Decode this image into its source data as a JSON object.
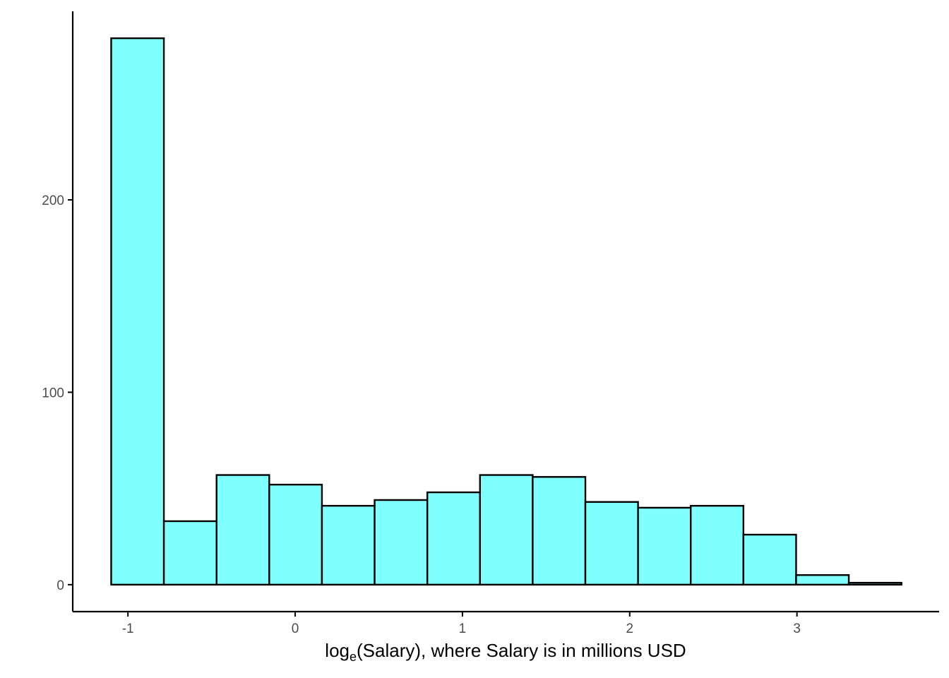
{
  "chart_data": {
    "type": "bar",
    "histogram": true,
    "xlabel_prefix": "log",
    "xlabel_subscript": "e",
    "xlabel_suffix": "(Salary), where Salary is in millions USD",
    "ylabel": "",
    "bins": [
      {
        "x0": -1.1,
        "x1": -0.785,
        "count": 284
      },
      {
        "x0": -0.785,
        "x1": -0.47,
        "count": 33
      },
      {
        "x0": -0.47,
        "x1": -0.155,
        "count": 57
      },
      {
        "x0": -0.155,
        "x1": 0.16,
        "count": 52
      },
      {
        "x0": 0.16,
        "x1": 0.475,
        "count": 41
      },
      {
        "x0": 0.475,
        "x1": 0.79,
        "count": 44
      },
      {
        "x0": 0.79,
        "x1": 1.105,
        "count": 48
      },
      {
        "x0": 1.105,
        "x1": 1.42,
        "count": 57
      },
      {
        "x0": 1.42,
        "x1": 1.735,
        "count": 56
      },
      {
        "x0": 1.735,
        "x1": 2.05,
        "count": 43
      },
      {
        "x0": 2.05,
        "x1": 2.365,
        "count": 40
      },
      {
        "x0": 2.365,
        "x1": 2.68,
        "count": 41
      },
      {
        "x0": 2.68,
        "x1": 2.995,
        "count": 26
      },
      {
        "x0": 2.995,
        "x1": 3.31,
        "count": 5
      },
      {
        "x0": 3.31,
        "x1": 3.625,
        "count": 1
      }
    ],
    "xlim": [
      -1.33,
      3.85
    ],
    "ylim": [
      -14,
      298
    ],
    "x_ticks": [
      {
        "value": -1,
        "label": "-1"
      },
      {
        "value": 0,
        "label": "0"
      },
      {
        "value": 1,
        "label": "1"
      },
      {
        "value": 2,
        "label": "2"
      },
      {
        "value": 3,
        "label": "3"
      }
    ],
    "y_ticks": [
      {
        "value": 0,
        "label": "0"
      },
      {
        "value": 100,
        "label": "100"
      },
      {
        "value": 200,
        "label": "200"
      }
    ],
    "bar_fill": "#80ffff",
    "bar_stroke": "#000000",
    "grid": false,
    "legend": "none"
  }
}
